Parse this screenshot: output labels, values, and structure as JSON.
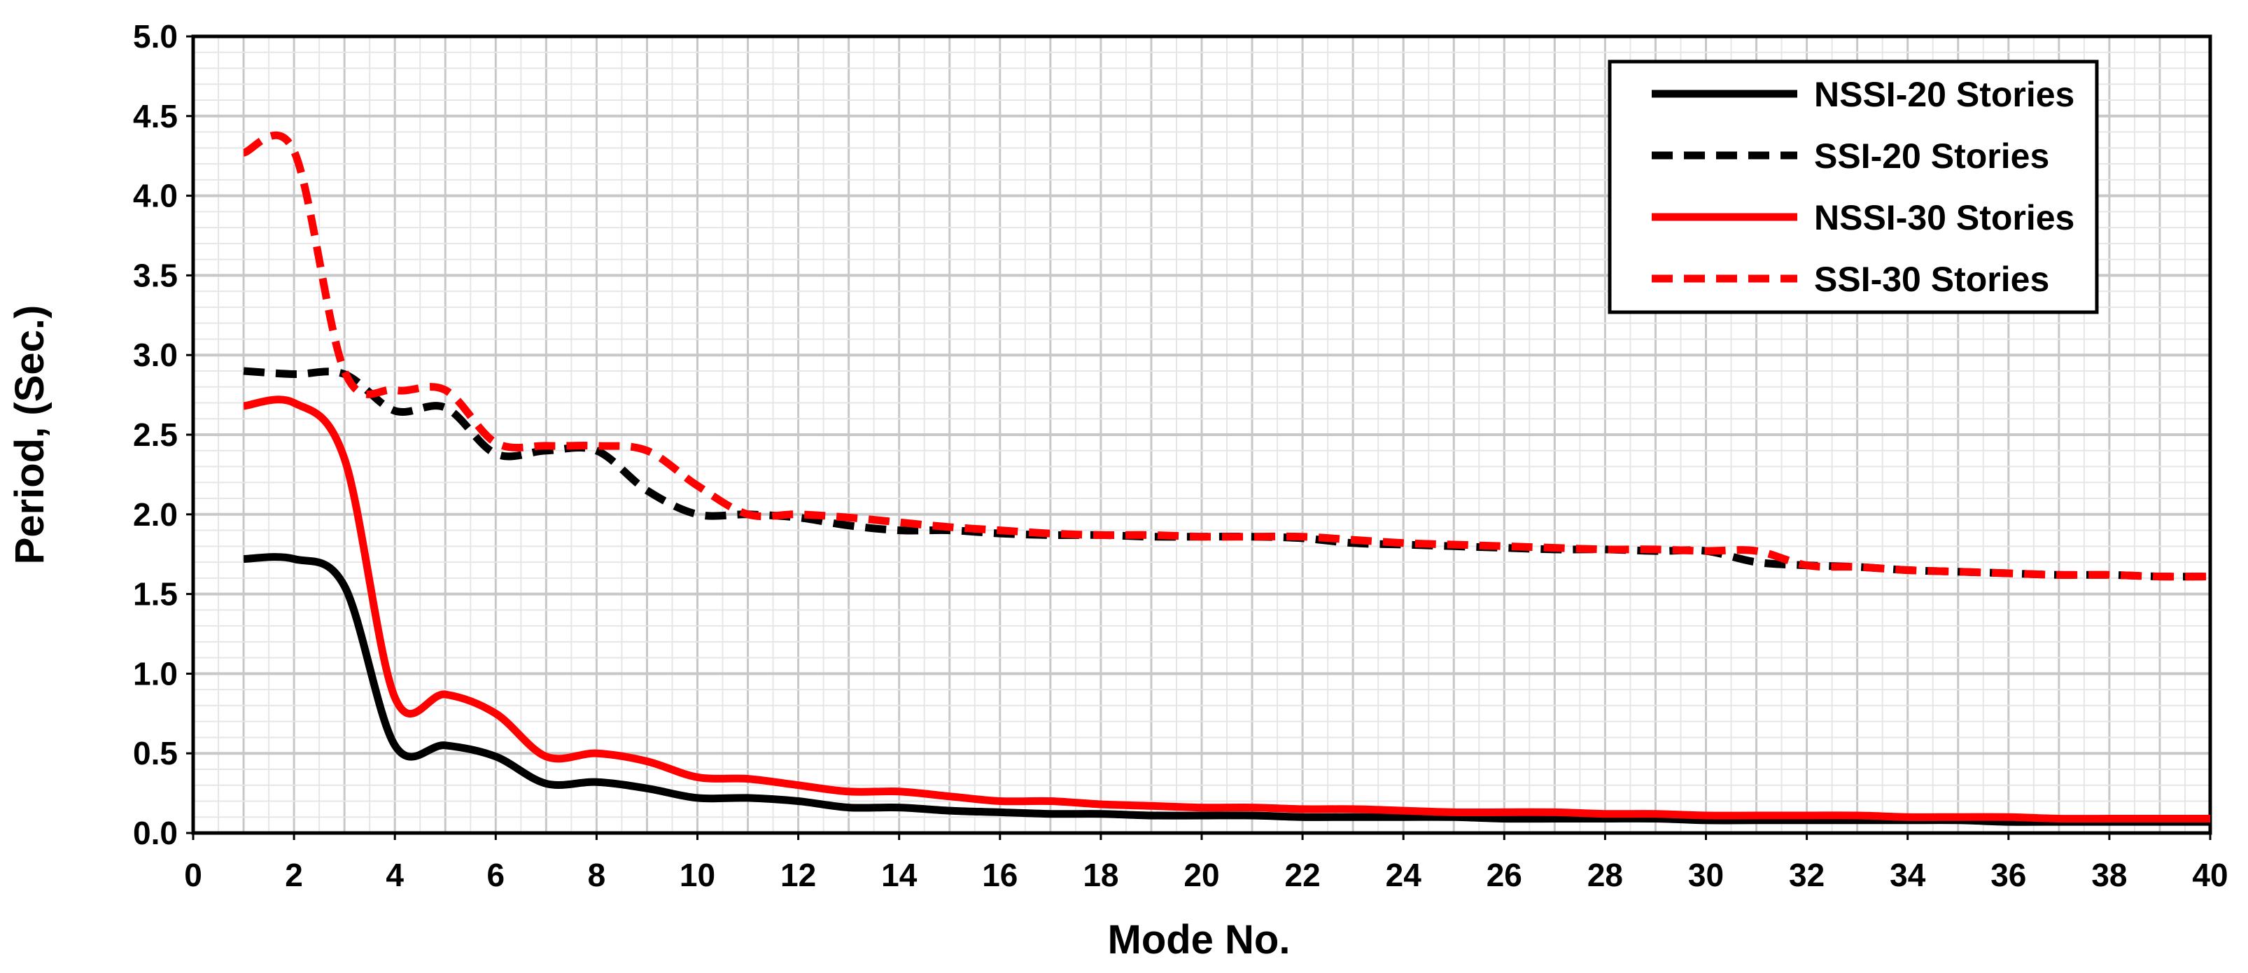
{
  "chart_data": {
    "type": "line",
    "title": "",
    "xlabel": "Mode No.",
    "ylabel": "Period, (Sec.)",
    "xlim": [
      0,
      40
    ],
    "ylim": [
      0,
      5
    ],
    "xticks": [
      0,
      2,
      4,
      6,
      8,
      10,
      12,
      14,
      16,
      18,
      20,
      22,
      24,
      26,
      28,
      30,
      32,
      34,
      36,
      38,
      40
    ],
    "xtick_labels": [
      "0",
      "2",
      "4",
      "6",
      "8",
      "10",
      "12",
      "14",
      "16",
      "18",
      "20",
      "22",
      "24",
      "26",
      "28",
      "30",
      "32",
      "34",
      "36",
      "38",
      "40"
    ],
    "yticks": [
      0,
      0.5,
      1,
      1.5,
      2,
      2.5,
      3,
      3.5,
      4,
      4.5,
      5
    ],
    "ytick_labels": [
      "0.0",
      "0.5",
      "1.0",
      "1.5",
      "2.0",
      "2.5",
      "3.0",
      "3.5",
      "4.0",
      "4.5",
      "5.0"
    ],
    "grid": true,
    "legend_position": "top-right",
    "x": [
      1,
      2,
      3,
      4,
      5,
      6,
      7,
      8,
      9,
      10,
      11,
      12,
      13,
      14,
      15,
      16,
      17,
      18,
      19,
      20,
      21,
      22,
      23,
      24,
      25,
      26,
      27,
      28,
      29,
      30,
      31,
      32,
      33,
      34,
      35,
      36,
      37,
      38,
      39,
      40
    ],
    "series": [
      {
        "name": "NSSI-20 Stories",
        "color": "#000000",
        "dash": "solid",
        "values": [
          1.72,
          1.72,
          1.55,
          0.55,
          0.55,
          0.48,
          0.31,
          0.32,
          0.28,
          0.22,
          0.22,
          0.2,
          0.16,
          0.16,
          0.14,
          0.13,
          0.12,
          0.12,
          0.11,
          0.11,
          0.11,
          0.1,
          0.1,
          0.1,
          0.1,
          0.09,
          0.09,
          0.09,
          0.09,
          0.08,
          0.08,
          0.08,
          0.08,
          0.08,
          0.08,
          0.07,
          0.07,
          0.07,
          0.07,
          0.07
        ]
      },
      {
        "name": "SSI-20 Stories",
        "color": "#000000",
        "dash": "dashed",
        "values": [
          2.9,
          2.88,
          2.88,
          2.65,
          2.67,
          2.38,
          2.4,
          2.4,
          2.15,
          2.0,
          2.0,
          1.98,
          1.93,
          1.9,
          1.9,
          1.88,
          1.87,
          1.87,
          1.86,
          1.86,
          1.86,
          1.85,
          1.82,
          1.81,
          1.8,
          1.79,
          1.78,
          1.78,
          1.77,
          1.77,
          1.7,
          1.68,
          1.67,
          1.65,
          1.64,
          1.63,
          1.62,
          1.62,
          1.61,
          1.61
        ]
      },
      {
        "name": "NSSI-30 Stories",
        "color": "#ff0000",
        "dash": "solid",
        "values": [
          2.68,
          2.7,
          2.35,
          0.85,
          0.87,
          0.75,
          0.48,
          0.5,
          0.45,
          0.35,
          0.34,
          0.3,
          0.26,
          0.26,
          0.23,
          0.2,
          0.2,
          0.18,
          0.17,
          0.16,
          0.16,
          0.15,
          0.15,
          0.14,
          0.13,
          0.13,
          0.13,
          0.12,
          0.12,
          0.11,
          0.11,
          0.11,
          0.11,
          0.1,
          0.1,
          0.1,
          0.09,
          0.09,
          0.09,
          0.09
        ]
      },
      {
        "name": "SSI-30 Stories",
        "color": "#ff0000",
        "dash": "dashed",
        "values": [
          4.27,
          4.28,
          2.9,
          2.78,
          2.78,
          2.45,
          2.43,
          2.43,
          2.4,
          2.18,
          2.0,
          2.0,
          1.98,
          1.95,
          1.92,
          1.9,
          1.88,
          1.87,
          1.87,
          1.86,
          1.86,
          1.86,
          1.84,
          1.82,
          1.81,
          1.8,
          1.79,
          1.78,
          1.78,
          1.77,
          1.77,
          1.68,
          1.67,
          1.65,
          1.64,
          1.63,
          1.62,
          1.62,
          1.61,
          1.61
        ]
      }
    ]
  }
}
